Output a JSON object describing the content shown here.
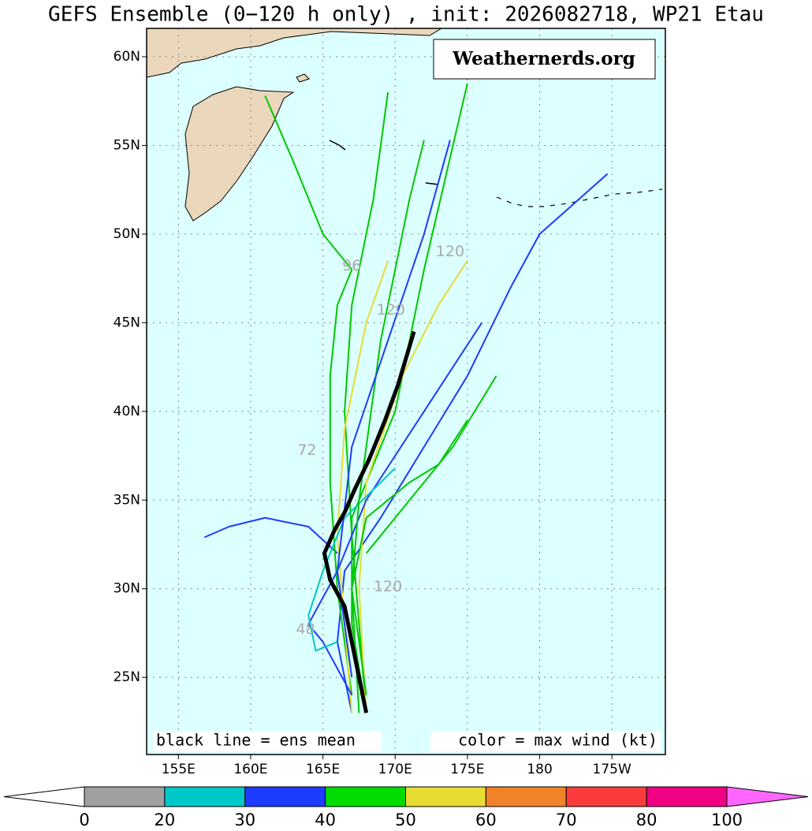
{
  "title": "GEFS Ensemble (0−120 h only) , init: 2026082718, WP21 Etau",
  "logo": "Weathernerds.org",
  "notes": {
    "left": "black line = ens mean",
    "right": "color = max wind (kt)"
  },
  "map": {
    "xlim": [
      152.8,
      188.7
    ],
    "ylim": [
      20.65,
      61.6
    ],
    "xticks": [
      {
        "value": 155,
        "label": "155E"
      },
      {
        "value": 160,
        "label": "160E"
      },
      {
        "value": 165,
        "label": "165E"
      },
      {
        "value": 170,
        "label": "170E"
      },
      {
        "value": 175,
        "label": "175E"
      },
      180,
      {
        "value": 185,
        "label": "175W"
      }
    ],
    "yticks": [
      {
        "value": 25,
        "label": "25N"
      },
      {
        "value": 30,
        "label": "30N"
      },
      {
        "value": 35,
        "label": "35N"
      },
      {
        "value": 40,
        "label": "40N"
      },
      {
        "value": 45,
        "label": "45N"
      },
      {
        "value": 50,
        "label": "50N"
      },
      {
        "value": 55,
        "label": "55N"
      },
      {
        "value": 60,
        "label": "60N"
      }
    ],
    "grid": true,
    "tracks": [
      {
        "color": "#1e3cff",
        "lon": [
          167,
          166,
          166.5,
          169,
          172,
          175,
          178,
          180,
          184.7
        ],
        "lat": [
          23,
          27,
          31,
          34,
          38,
          42,
          47,
          50,
          53.4
        ]
      },
      {
        "color": "#1e3cff",
        "lon": [
          166,
          164,
          161,
          158.5,
          156.8
        ],
        "lat": [
          32,
          33.5,
          34,
          33.5,
          32.9
        ]
      },
      {
        "color": "#00c800",
        "lon": [
          167,
          166,
          165.5,
          165.5,
          166,
          167,
          165,
          163,
          161
        ],
        "lat": [
          24,
          30,
          36,
          42,
          46,
          48,
          50,
          54,
          57.8
        ]
      },
      {
        "color": "#00c800",
        "lon": [
          168,
          167.5,
          167,
          166.5,
          167,
          168.5,
          169.5
        ],
        "lat": [
          23,
          28,
          33,
          40,
          46,
          52,
          58
        ]
      },
      {
        "color": "#00c800",
        "lon": [
          168,
          167,
          167,
          170,
          172,
          174,
          175
        ],
        "lat": [
          23,
          28,
          34,
          40,
          48,
          55,
          58.5
        ]
      },
      {
        "color": "#e6dc32",
        "lon": [
          167,
          166.5,
          166,
          166.5,
          168,
          169.5
        ],
        "lat": [
          23,
          28,
          33,
          39,
          45,
          48.5
        ]
      },
      {
        "color": "#e6dc32",
        "lon": [
          168,
          167.5,
          168,
          170.5,
          173,
          175
        ],
        "lat": [
          23,
          30,
          36,
          42,
          46,
          48.5
        ]
      },
      {
        "color": "#00c800",
        "lon": [
          167.5,
          167,
          168,
          171,
          173,
          175
        ],
        "lat": [
          23,
          30,
          34,
          36,
          37,
          39.5
        ]
      },
      {
        "color": "#00c800",
        "lon": [
          168,
          171,
          174,
          177
        ],
        "lat": [
          32,
          35,
          38,
          42
        ]
      },
      {
        "color": "#1e3cff",
        "lon": [
          167,
          165,
          164,
          166,
          168,
          172,
          176
        ],
        "lat": [
          24,
          27,
          28,
          31,
          35,
          40,
          45
        ]
      },
      {
        "color": "#00c8c8",
        "lon": [
          166,
          164.5,
          164,
          165,
          166.5,
          170
        ],
        "lat": [
          27,
          26.5,
          28.5,
          31,
          34,
          36.8
        ]
      },
      {
        "color": "#00c800",
        "lon": [
          168,
          167,
          167.5,
          169,
          171,
          172
        ],
        "lat": [
          24,
          30,
          35,
          44,
          52,
          55.3
        ]
      },
      {
        "color": "#1e3cff",
        "lon": [
          167,
          166,
          167,
          172,
          173.8
        ],
        "lat": [
          25,
          31,
          38,
          50,
          55.3
        ]
      }
    ],
    "mean": {
      "color": "#000000",
      "lon": [
        168.0,
        167.5,
        167,
        166.5,
        165.5,
        165.1,
        165.8,
        166.5,
        167.2,
        168.2,
        169.3,
        170.2,
        171.3
      ],
      "lat": [
        23,
        25,
        27,
        29,
        30.5,
        32,
        33.3,
        34.3,
        35.6,
        37.3,
        39.5,
        41.5,
        44.5
      ]
    },
    "hour_labels": [
      {
        "text": "96",
        "lon": 167.0,
        "lat": 48.2
      },
      {
        "text": "120",
        "lon": 173.8,
        "lat": 49.0
      },
      {
        "text": "120",
        "lon": 169.7,
        "lat": 45.7
      },
      {
        "text": "72",
        "lon": 163.9,
        "lat": 37.8
      },
      {
        "text": "120",
        "lon": 169.5,
        "lat": 30.1
      },
      {
        "text": "48",
        "lon": 163.8,
        "lat": 27.7
      }
    ]
  },
  "colorbar": {
    "bounds": [
      0,
      20,
      30,
      40,
      50,
      60,
      70,
      80,
      100
    ],
    "colors": [
      "#a0a0a0",
      "#00c8c8",
      "#1e3cff",
      "#00dc00",
      "#e6dc32",
      "#f08228",
      "#fa3c3c",
      "#f00082"
    ],
    "under_color": "#ffffff",
    "over_color": "#ff66ff"
  }
}
